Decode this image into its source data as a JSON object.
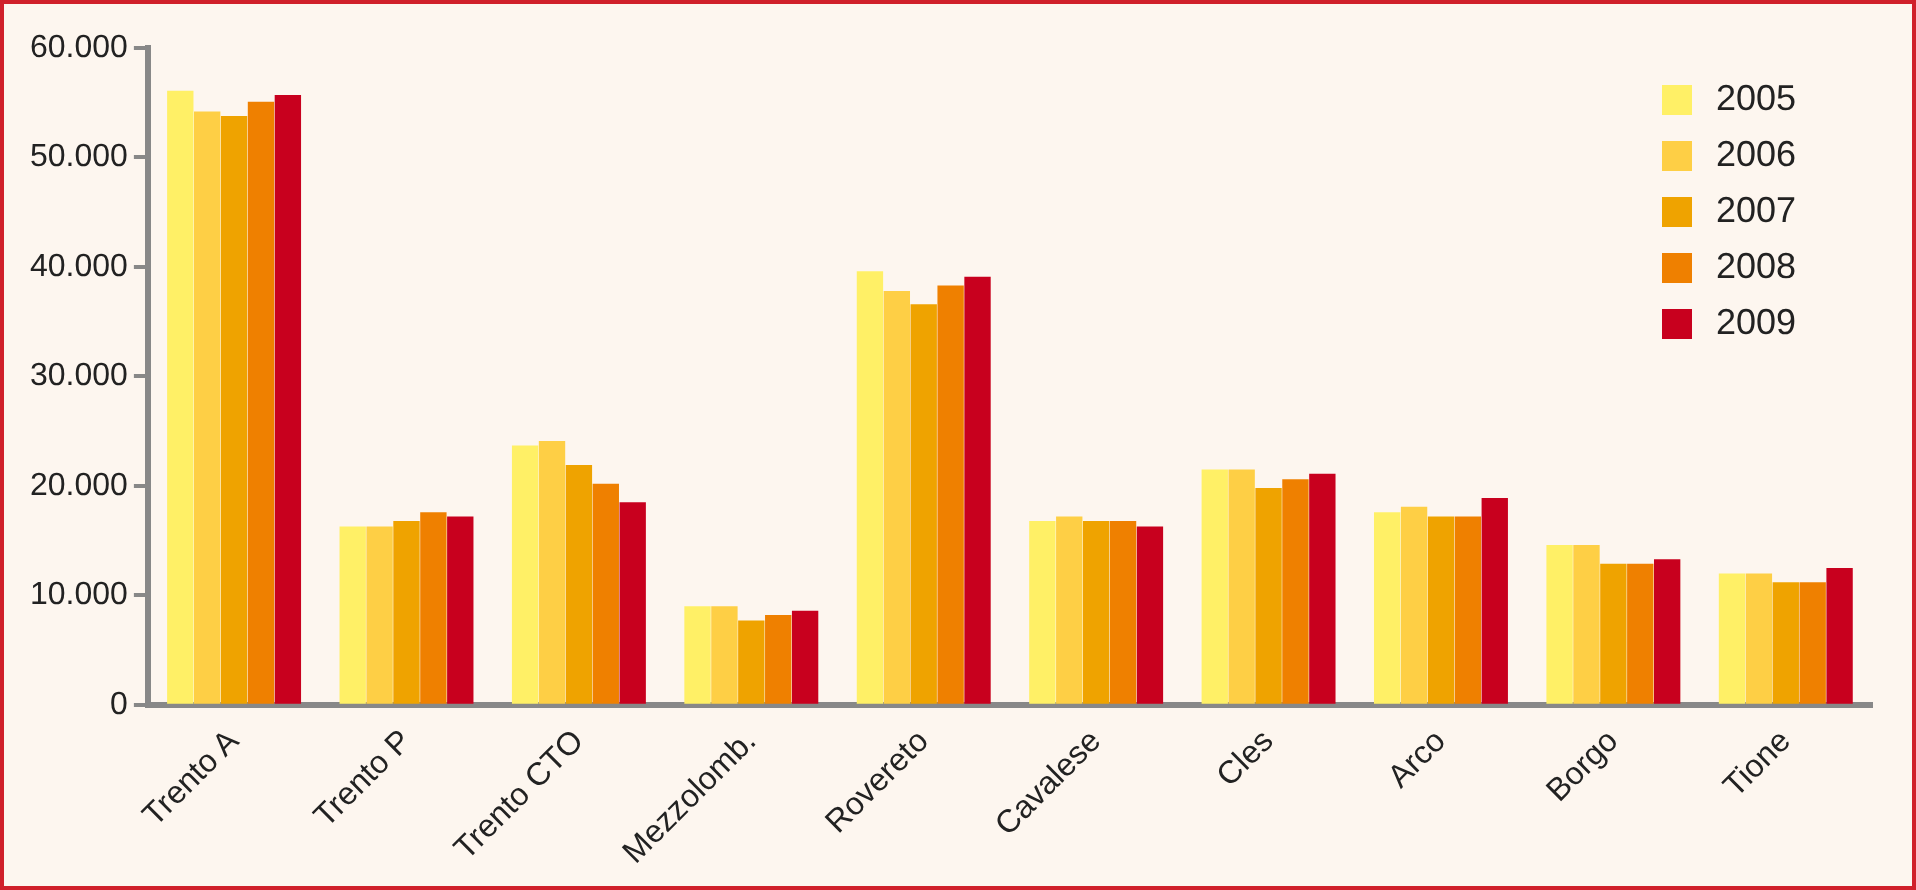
{
  "chart_data": {
    "type": "bar",
    "categories": [
      "Trento A",
      "Trento P",
      "Trento CTO",
      "Mezzolomb.",
      "Rovereto",
      "Cavalese",
      "Cles",
      "Arco",
      "Borgo",
      "Tione"
    ],
    "series": [
      {
        "name": "2005",
        "color": "#fff066",
        "values": [
          56100,
          16300,
          23700,
          9000,
          39600,
          16800,
          21500,
          17600,
          14600,
          12000
        ]
      },
      {
        "name": "2006",
        "color": "#fecf45",
        "values": [
          54200,
          16300,
          24100,
          9000,
          37800,
          17200,
          21500,
          18100,
          14600,
          12000
        ]
      },
      {
        "name": "2007",
        "color": "#efa300",
        "values": [
          53800,
          16800,
          21900,
          7700,
          36600,
          16800,
          19800,
          17200,
          12900,
          11200
        ]
      },
      {
        "name": "2008",
        "color": "#ef8000",
        "values": [
          55100,
          17600,
          20200,
          8200,
          38300,
          16800,
          20600,
          17200,
          12900,
          11200
        ]
      },
      {
        "name": "2009",
        "color": "#c8001e",
        "values": [
          55700,
          17200,
          18500,
          8600,
          39100,
          16300,
          21100,
          18900,
          13300,
          12500
        ]
      }
    ],
    "ylim": [
      0,
      60000
    ],
    "yticks": [
      {
        "value": 0,
        "label": "0"
      },
      {
        "value": 10000,
        "label": "10.000"
      },
      {
        "value": 20000,
        "label": "20.000"
      },
      {
        "value": 30000,
        "label": "30.000"
      },
      {
        "value": 40000,
        "label": "40.000"
      },
      {
        "value": 50000,
        "label": "50.000"
      },
      {
        "value": 60000,
        "label": "60.000"
      }
    ],
    "grid": false,
    "legend": "top right"
  }
}
